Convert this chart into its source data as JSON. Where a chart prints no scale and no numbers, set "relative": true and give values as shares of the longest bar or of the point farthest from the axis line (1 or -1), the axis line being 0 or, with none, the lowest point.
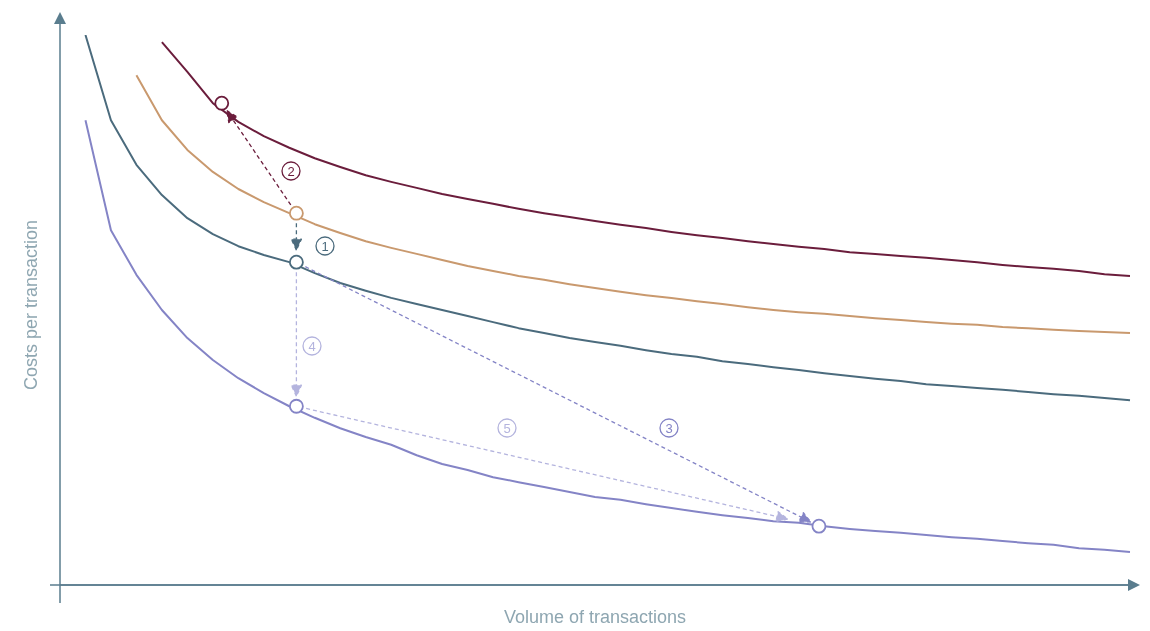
{
  "chart_data": {
    "type": "line",
    "relative": true,
    "xlabel": "Volume of transactions",
    "ylabel": "Costs per transaction",
    "annotations": [
      "1",
      "2",
      "3",
      "4",
      "5"
    ],
    "categories": [
      null,
      null,
      null,
      null,
      null,
      null,
      null,
      null,
      null,
      null,
      null,
      null,
      null,
      null,
      null,
      null,
      null,
      null,
      null,
      null,
      null,
      null,
      null,
      null,
      null,
      null,
      null,
      null,
      null,
      null,
      null,
      null,
      null,
      null,
      null,
      null,
      null,
      null,
      null,
      null,
      null,
      null,
      null
    ],
    "series": [
      {
        "color": "#6b1d3c",
        "values": [
          null,
          null,
          null,
          null,
          0.987,
          0.933,
          0.876,
          0.842,
          0.816,
          0.795,
          0.776,
          0.76,
          0.745,
          0.733,
          0.722,
          0.711,
          0.702,
          0.693,
          0.684,
          0.676,
          0.669,
          0.662,
          0.655,
          0.649,
          0.642,
          0.636,
          0.631,
          0.625,
          0.62,
          0.615,
          0.611,
          0.605,
          0.602,
          0.598,
          0.595,
          0.591,
          0.587,
          0.582,
          0.578,
          0.575,
          0.571,
          0.565,
          0.562
        ]
      },
      {
        "color": "#c9996e",
        "values": [
          null,
          null,
          null,
          0.927,
          0.845,
          0.791,
          0.751,
          0.72,
          0.696,
          0.676,
          0.656,
          0.64,
          0.625,
          0.613,
          0.602,
          0.591,
          0.58,
          0.571,
          0.562,
          0.555,
          0.547,
          0.54,
          0.533,
          0.527,
          0.522,
          0.516,
          0.511,
          0.505,
          0.5,
          0.496,
          0.493,
          0.489,
          0.485,
          0.482,
          0.478,
          0.475,
          0.473,
          0.469,
          0.467,
          0.464,
          0.462,
          0.46,
          0.458
        ]
      },
      {
        "color": "#4b6b7d",
        "values": [
          null,
          1,
          0.845,
          0.764,
          0.709,
          0.667,
          0.638,
          0.616,
          0.6,
          0.587,
          0.567,
          0.549,
          0.535,
          0.522,
          0.511,
          0.5,
          0.489,
          0.478,
          0.467,
          0.458,
          0.449,
          0.442,
          0.435,
          0.427,
          0.42,
          0.415,
          0.407,
          0.402,
          0.396,
          0.391,
          0.385,
          0.38,
          0.375,
          0.371,
          0.365,
          0.362,
          0.358,
          0.355,
          0.351,
          0.347,
          0.344,
          0.34,
          0.336
        ]
      },
      {
        "color": "#8484c6",
        "values": [
          null,
          0.845,
          0.645,
          0.564,
          0.5,
          0.449,
          0.409,
          0.376,
          0.349,
          0.325,
          0.304,
          0.285,
          0.269,
          0.255,
          0.236,
          0.22,
          0.209,
          0.196,
          0.187,
          0.178,
          0.169,
          0.16,
          0.155,
          0.147,
          0.14,
          0.133,
          0.127,
          0.122,
          0.116,
          0.113,
          0.107,
          0.102,
          0.098,
          0.095,
          0.091,
          0.087,
          0.084,
          0.08,
          0.076,
          0.073,
          0.067,
          0.064,
          0.06
        ]
      }
    ]
  }
}
